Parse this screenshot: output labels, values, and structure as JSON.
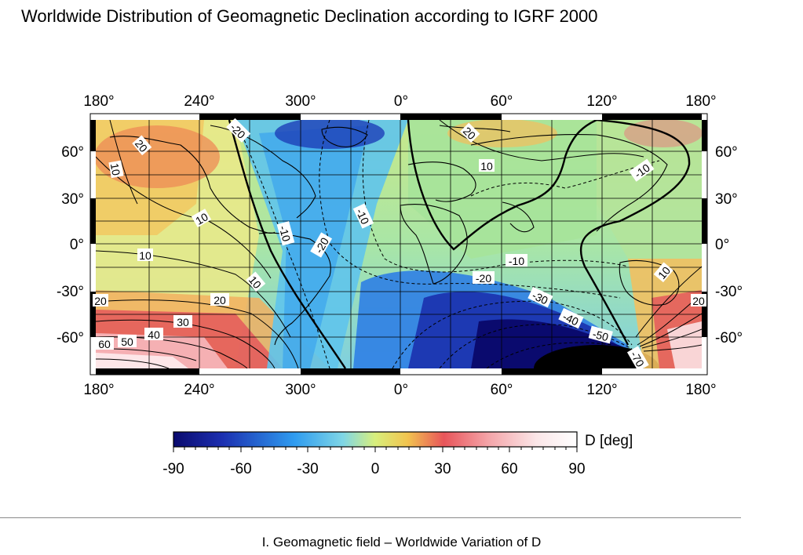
{
  "title": "Worldwide Distribution of Geomagnetic Declination according to IGRF 2000",
  "map": {
    "top_lon_ticks": [
      "180°",
      "240°",
      "300°",
      "0°",
      "60°",
      "120°",
      "180°"
    ],
    "bottom_lon_ticks": [
      "180°",
      "240°",
      "300°",
      "0°",
      "60°",
      "120°",
      "180°"
    ],
    "left_lat_ticks": [
      "60°",
      "30°",
      "0°",
      "-30°",
      "-60°"
    ],
    "right_lat_ticks": [
      "60°",
      "30°",
      "0°",
      "-30°",
      "-60°"
    ],
    "contour_labels": [
      "20",
      "10",
      "10",
      "-10",
      "-20",
      "-20",
      "20",
      "10",
      "-10",
      "-10",
      "10",
      "10",
      "-10",
      "-20",
      "-30",
      "-40",
      "-50",
      "-70",
      "10",
      "20",
      "20",
      "20",
      "30",
      "40",
      "50",
      "60"
    ]
  },
  "colorbar": {
    "label": "D [deg]",
    "ticks": [
      "-90",
      "-60",
      "-30",
      "0",
      "30",
      "60",
      "90"
    ],
    "range": [
      -90,
      90
    ]
  },
  "footer": "I. Geomagnetic field – Worldwide Variation of D"
}
